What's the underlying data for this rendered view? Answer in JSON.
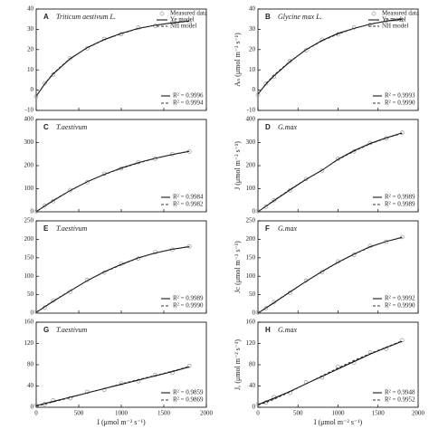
{
  "chart_data": [
    {
      "type": "line",
      "letter": "A",
      "title": "Triticum aestivum L.",
      "x": [
        0,
        100,
        200,
        400,
        600,
        800,
        1000,
        1200,
        1400,
        1600,
        1800
      ],
      "xlim": [
        0,
        2000
      ],
      "xticks": [
        0,
        500,
        1000,
        1500,
        2000
      ],
      "ylim": [
        -10,
        40
      ],
      "yticks": [
        -10,
        0,
        10,
        20,
        30,
        40
      ],
      "series": [
        {
          "name": "Measured data",
          "color": "#999999",
          "marker": "circle",
          "values": [
            -3.2,
            3.4,
            7.6,
            15.8,
            20.6,
            25.3,
            27.6,
            30.8,
            31.7,
            33.5,
            33.8
          ]
        },
        {
          "name": "Ye model",
          "color": "#000000",
          "values": [
            -3,
            3,
            8,
            15.5,
            21,
            25,
            28,
            30.5,
            32,
            33.2,
            34
          ]
        },
        {
          "name": "NH model",
          "color": "#333333",
          "dash": true,
          "values": [
            -3,
            3.2,
            8.3,
            15.7,
            20.8,
            24.8,
            27.8,
            30.3,
            32,
            33.3,
            34.2
          ]
        }
      ],
      "r2": [
        "R² = 0.9996",
        "R² = 0.9994"
      ]
    },
    {
      "type": "line",
      "letter": "B",
      "title": "Glycine max L.",
      "ylabel": "Aₙ (μmol m⁻² s⁻¹)",
      "x": [
        0,
        100,
        200,
        400,
        600,
        800,
        1000,
        1200,
        1400,
        1600,
        1800
      ],
      "xlim": [
        0,
        2000
      ],
      "xticks": [
        0,
        500,
        1000,
        1500,
        2000
      ],
      "ylim": [
        -10,
        40
      ],
      "yticks": [
        -10,
        0,
        10,
        20,
        30,
        40
      ],
      "series": [
        {
          "name": "Measured data",
          "color": "#999999",
          "marker": "circle",
          "values": [
            -2.3,
            3.3,
            6.6,
            14.4,
            19.6,
            24.9,
            27.5,
            30.9,
            32.2,
            34.4,
            34.7
          ]
        },
        {
          "name": "Ye model",
          "color": "#000000",
          "values": [
            -2,
            3,
            7,
            14,
            20,
            24.5,
            28,
            30.5,
            32.5,
            34,
            35
          ]
        },
        {
          "name": "NH model",
          "color": "#333333",
          "dash": true,
          "values": [
            -2,
            3.3,
            7.4,
            14.3,
            19.8,
            24.3,
            27.7,
            30.4,
            32.5,
            34.1,
            35.3
          ]
        }
      ],
      "r2": [
        "R² = 0.9993",
        "R² = 0.9990"
      ]
    },
    {
      "type": "line",
      "letter": "C",
      "title": "T.aestivum",
      "x": [
        0,
        100,
        200,
        400,
        600,
        800,
        1000,
        1200,
        1400,
        1600,
        1800
      ],
      "xlim": [
        0,
        2000
      ],
      "xticks": [
        0,
        500,
        1000,
        1500,
        2000
      ],
      "ylim": [
        0,
        400
      ],
      "yticks": [
        0,
        100,
        200,
        300,
        400
      ],
      "series": [
        {
          "color": "#999999",
          "marker": "circle",
          "values": [
            2,
            27,
            46,
            94,
            128,
            165,
            188,
            215,
            230,
            250,
            261
          ]
        },
        {
          "color": "#000000",
          "values": [
            0,
            25,
            48,
            92,
            130,
            162,
            190,
            213,
            232,
            248,
            262
          ]
        },
        {
          "color": "#333333",
          "dash": true,
          "values": [
            0,
            26,
            50,
            93,
            130,
            161,
            188,
            211,
            231,
            248,
            263
          ]
        }
      ],
      "r2": [
        "R² = 0.9984",
        "R² = 0.9982"
      ]
    },
    {
      "type": "line",
      "letter": "D",
      "title": "G.max",
      "ylabel": "J (μmol m⁻² s⁻¹)",
      "x": [
        0,
        100,
        200,
        400,
        600,
        800,
        1000,
        1200,
        1400,
        1600,
        1800
      ],
      "xlim": [
        0,
        2000
      ],
      "xticks": [
        0,
        500,
        1000,
        1500,
        2000
      ],
      "ylim": [
        0,
        400
      ],
      "yticks": [
        0,
        100,
        200,
        300,
        400
      ],
      "series": [
        {
          "color": "#999999",
          "marker": "circle",
          "values": [
            3,
            22,
            50,
            93,
            142,
            178,
            230,
            262,
            298,
            318,
            343
          ]
        },
        {
          "color": "#000000",
          "values": [
            0,
            24,
            48,
            95,
            140,
            180,
            228,
            265,
            296,
            320,
            342
          ]
        },
        {
          "color": "#333333",
          "dash": true,
          "values": [
            0,
            25,
            50,
            97,
            141,
            180,
            226,
            262,
            294,
            319,
            340
          ]
        }
      ],
      "r2": [
        "R² = 0.9989",
        "R² = 0.9989"
      ]
    },
    {
      "type": "line",
      "letter": "E",
      "title": "T.aestivum",
      "ylabel": "",
      "x": [
        0,
        100,
        200,
        400,
        600,
        800,
        1000,
        1200,
        1400,
        1600,
        1800
      ],
      "xlim": [
        0,
        2000
      ],
      "xticks": [
        0,
        500,
        1000,
        1500,
        2000
      ],
      "ylim": [
        0,
        250
      ],
      "yticks": [
        0,
        50,
        100,
        150,
        200,
        250
      ],
      "series": [
        {
          "color": "#999999",
          "marker": "circle",
          "values": [
            4,
            15,
            34,
            58,
            90,
            110,
            134,
            148,
            165,
            172,
            181
          ]
        },
        {
          "color": "#000000",
          "values": [
            2,
            17,
            32,
            60,
            88,
            112,
            132,
            150,
            163,
            173,
            180
          ]
        },
        {
          "color": "#333333",
          "dash": true,
          "values": [
            2,
            18,
            33,
            61,
            88,
            111,
            131,
            149,
            163,
            173,
            181
          ]
        }
      ],
      "r2": [
        "R² = 0.9989",
        "R² = 0.9990"
      ]
    },
    {
      "type": "line",
      "letter": "F",
      "title": "G.max",
      "ylabel": "Jᴄ (μmol m⁻² s⁻¹)",
      "x": [
        0,
        100,
        200,
        400,
        600,
        800,
        1000,
        1200,
        1400,
        1600,
        1800
      ],
      "xlim": [
        0,
        2000
      ],
      "xticks": [
        0,
        500,
        1000,
        1500,
        2000
      ],
      "ylim": [
        0,
        250
      ],
      "yticks": [
        0,
        50,
        100,
        150,
        200,
        250
      ],
      "series": [
        {
          "color": "#999999",
          "marker": "circle",
          "values": [
            2,
            13,
            30,
            55,
            88,
            111,
            140,
            158,
            182,
            193,
            206
          ]
        },
        {
          "color": "#000000",
          "values": [
            0,
            14,
            28,
            57,
            86,
            113,
            138,
            160,
            180,
            194,
            205
          ]
        },
        {
          "color": "#333333",
          "dash": true,
          "values": [
            0,
            15,
            29,
            58,
            86,
            112,
            137,
            159,
            179,
            194,
            206
          ]
        }
      ],
      "r2": [
        "R² = 0.9992",
        "R² = 0.9990"
      ]
    },
    {
      "type": "line",
      "letter": "G",
      "title": "T.aestivum",
      "xlabel": "I (μmol m⁻² s⁻¹)",
      "x": [
        0,
        100,
        200,
        400,
        600,
        800,
        1000,
        1200,
        1400,
        1600,
        1800
      ],
      "xlim": [
        0,
        2000
      ],
      "xticks": [
        0,
        500,
        1000,
        1500,
        2000
      ],
      "ylim": [
        0,
        160
      ],
      "yticks": [
        0,
        40,
        80,
        120,
        160
      ],
      "series": [
        {
          "color": "#999999",
          "marker": "circle",
          "values": [
            4,
            6,
            13,
            17,
            29,
            33,
            45,
            49,
            61,
            65,
            78
          ]
        },
        {
          "color": "#000000",
          "values": [
            3,
            7,
            11,
            19,
            27,
            35,
            43,
            51,
            59,
            67,
            76
          ]
        },
        {
          "color": "#333333",
          "dash": true,
          "values": [
            2,
            6,
            10,
            18,
            27,
            35,
            44,
            52,
            60,
            68,
            77
          ]
        }
      ],
      "r2": [
        "R² = 0.9859",
        "R² = 0.9869"
      ]
    },
    {
      "type": "line",
      "letter": "H",
      "title": "G.max",
      "xlabel": "I (μmol m⁻² s⁻¹)",
      "ylabel": "Jₒ (μmol m⁻² s⁻¹)",
      "x": [
        0,
        100,
        200,
        400,
        600,
        800,
        1000,
        1200,
        1400,
        1600,
        1800
      ],
      "xlim": [
        0,
        2000
      ],
      "xticks": [
        0,
        500,
        1000,
        1500,
        2000
      ],
      "ylim": [
        0,
        160
      ],
      "yticks": [
        0,
        40,
        80,
        120,
        160
      ],
      "series": [
        {
          "color": "#999999",
          "marker": "circle",
          "values": [
            6,
            9,
            19,
            27,
            47,
            56,
            76,
            84,
            103,
            110,
            126
          ]
        },
        {
          "color": "#000000",
          "values": [
            5,
            11,
            17,
            30,
            44,
            58,
            72,
            86,
            100,
            112,
            124
          ]
        },
        {
          "color": "#333333",
          "dash": true,
          "values": [
            4,
            9,
            15,
            29,
            44,
            59,
            74,
            88,
            101,
            113,
            125
          ]
        }
      ],
      "r2": [
        "R² = 0.9948",
        "R² = 0.9952"
      ]
    }
  ]
}
